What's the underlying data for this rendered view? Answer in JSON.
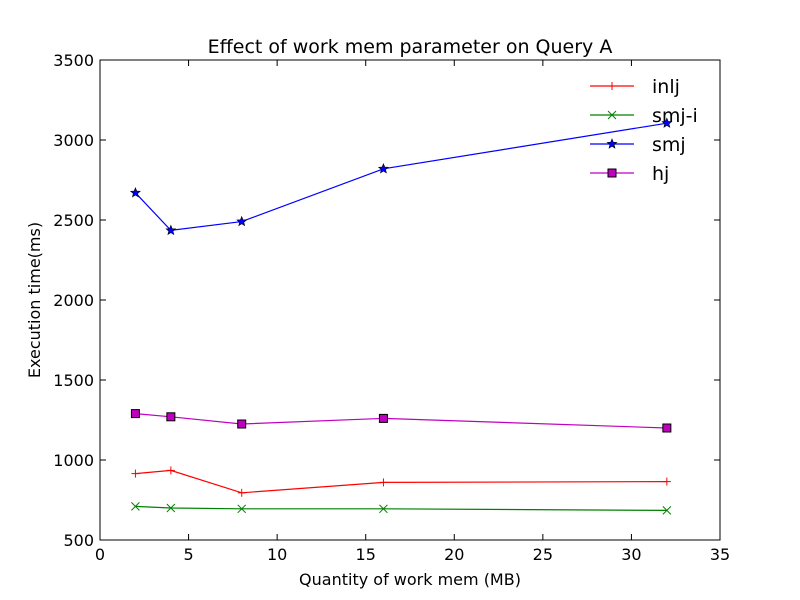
{
  "chart_data": {
    "type": "line",
    "title": "Effect of work mem parameter on Query A",
    "xlabel": "Quantity of work mem (MB)",
    "ylabel": "Execution time(ms)",
    "xlim": [
      0,
      35
    ],
    "ylim": [
      500,
      3500
    ],
    "xticks": [
      0,
      5,
      10,
      15,
      20,
      25,
      30,
      35
    ],
    "yticks": [
      500,
      1000,
      1500,
      2000,
      2500,
      3000,
      3500
    ],
    "x": [
      2,
      4,
      8,
      16,
      32
    ],
    "grid": false,
    "legend_position": "top-right",
    "series": [
      {
        "name": "inlj",
        "color": "#ff0000",
        "marker": "plus",
        "values": [
          915,
          935,
          795,
          860,
          865
        ]
      },
      {
        "name": "smj-i",
        "color": "#008000",
        "marker": "x",
        "values": [
          710,
          700,
          695,
          695,
          685
        ]
      },
      {
        "name": "smj",
        "color": "#0000ff",
        "marker": "star",
        "values": [
          2670,
          2435,
          2490,
          2820,
          3105
        ]
      },
      {
        "name": "hj",
        "color": "#bf00bf",
        "marker": "square",
        "values": [
          1290,
          1270,
          1225,
          1260,
          1200
        ]
      }
    ]
  }
}
